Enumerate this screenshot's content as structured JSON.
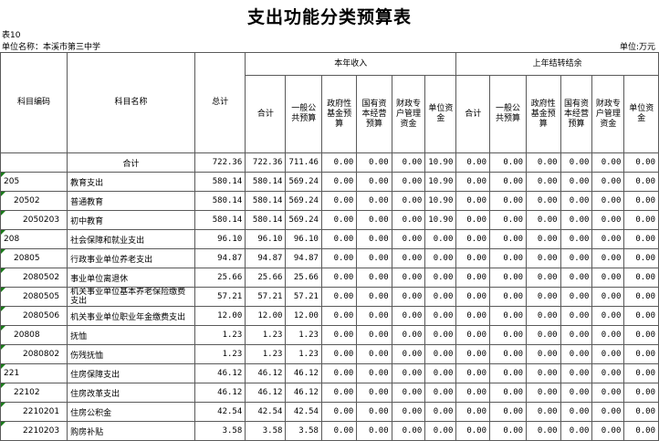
{
  "title": "支出功能分类预算表",
  "table_id": "表10",
  "unit_name": "单位名称：本溪市第三中学",
  "unit": "单位:万元",
  "headers": {
    "code": "科目编码",
    "name": "科目名称",
    "total": "总计",
    "group_current": "本年收入",
    "group_prior": "上年结转结余",
    "current_cols": [
      "合计",
      "一般公共预算",
      "政府性基金预算",
      "国有资本经营预算",
      "财政专户管理资金",
      "单位资金"
    ],
    "prior_cols": [
      "合计",
      "一般公共预算",
      "政府性基金预算",
      "国有资本经营预算",
      "财政专户管理资金",
      "单位资金"
    ]
  },
  "rows": [
    {
      "code": "",
      "name": "合计",
      "total": "722.36",
      "cur": [
        "722.36",
        "711.46",
        "0.00",
        "0.00",
        "0.00",
        "10.90"
      ],
      "prior": [
        "0.00",
        "0.00",
        "0.00",
        "0.00",
        "0.00",
        "0.00"
      ]
    },
    {
      "code": "205",
      "name": "教育支出",
      "total": "580.14",
      "cur": [
        "580.14",
        "569.24",
        "0.00",
        "0.00",
        "0.00",
        "10.90"
      ],
      "prior": [
        "0.00",
        "0.00",
        "0.00",
        "0.00",
        "0.00",
        "0.00"
      ]
    },
    {
      "code": "20502",
      "name": "普通教育",
      "total": "580.14",
      "cur": [
        "580.14",
        "569.24",
        "0.00",
        "0.00",
        "0.00",
        "10.90"
      ],
      "prior": [
        "0.00",
        "0.00",
        "0.00",
        "0.00",
        "0.00",
        "0.00"
      ]
    },
    {
      "code": "2050203",
      "name": "初中教育",
      "total": "580.14",
      "cur": [
        "580.14",
        "569.24",
        "0.00",
        "0.00",
        "0.00",
        "10.90"
      ],
      "prior": [
        "0.00",
        "0.00",
        "0.00",
        "0.00",
        "0.00",
        "0.00"
      ]
    },
    {
      "code": "208",
      "name": "社会保障和就业支出",
      "total": "96.10",
      "cur": [
        "96.10",
        "96.10",
        "0.00",
        "0.00",
        "0.00",
        "0.00"
      ],
      "prior": [
        "0.00",
        "0.00",
        "0.00",
        "0.00",
        "0.00",
        "0.00"
      ]
    },
    {
      "code": "20805",
      "name": "行政事业单位养老支出",
      "total": "94.87",
      "cur": [
        "94.87",
        "94.87",
        "0.00",
        "0.00",
        "0.00",
        "0.00"
      ],
      "prior": [
        "0.00",
        "0.00",
        "0.00",
        "0.00",
        "0.00",
        "0.00"
      ]
    },
    {
      "code": "2080502",
      "name": "事业单位离退休",
      "total": "25.66",
      "cur": [
        "25.66",
        "25.66",
        "0.00",
        "0.00",
        "0.00",
        "0.00"
      ],
      "prior": [
        "0.00",
        "0.00",
        "0.00",
        "0.00",
        "0.00",
        "0.00"
      ]
    },
    {
      "code": "2080505",
      "name": "机关事业单位基本养老保险缴费支出",
      "total": "57.21",
      "cur": [
        "57.21",
        "57.21",
        "0.00",
        "0.00",
        "0.00",
        "0.00"
      ],
      "prior": [
        "0.00",
        "0.00",
        "0.00",
        "0.00",
        "0.00",
        "0.00"
      ]
    },
    {
      "code": "2080506",
      "name": "机关事业单位职业年金缴费支出",
      "total": "12.00",
      "cur": [
        "12.00",
        "12.00",
        "0.00",
        "0.00",
        "0.00",
        "0.00"
      ],
      "prior": [
        "0.00",
        "0.00",
        "0.00",
        "0.00",
        "0.00",
        "0.00"
      ]
    },
    {
      "code": "20808",
      "name": "抚恤",
      "total": "1.23",
      "cur": [
        "1.23",
        "1.23",
        "0.00",
        "0.00",
        "0.00",
        "0.00"
      ],
      "prior": [
        "0.00",
        "0.00",
        "0.00",
        "0.00",
        "0.00",
        "0.00"
      ]
    },
    {
      "code": "2080802",
      "name": "伤残抚恤",
      "total": "1.23",
      "cur": [
        "1.23",
        "1.23",
        "0.00",
        "0.00",
        "0.00",
        "0.00"
      ],
      "prior": [
        "0.00",
        "0.00",
        "0.00",
        "0.00",
        "0.00",
        "0.00"
      ]
    },
    {
      "code": "221",
      "name": "住房保障支出",
      "total": "46.12",
      "cur": [
        "46.12",
        "46.12",
        "0.00",
        "0.00",
        "0.00",
        "0.00"
      ],
      "prior": [
        "0.00",
        "0.00",
        "0.00",
        "0.00",
        "0.00",
        "0.00"
      ]
    },
    {
      "code": "22102",
      "name": "住房改革支出",
      "total": "46.12",
      "cur": [
        "46.12",
        "46.12",
        "0.00",
        "0.00",
        "0.00",
        "0.00"
      ],
      "prior": [
        "0.00",
        "0.00",
        "0.00",
        "0.00",
        "0.00",
        "0.00"
      ]
    },
    {
      "code": "2210201",
      "name": "住房公积金",
      "total": "42.54",
      "cur": [
        "42.54",
        "42.54",
        "0.00",
        "0.00",
        "0.00",
        "0.00"
      ],
      "prior": [
        "0.00",
        "0.00",
        "0.00",
        "0.00",
        "0.00",
        "0.00"
      ]
    },
    {
      "code": "2210203",
      "name": "购房补贴",
      "total": "3.58",
      "cur": [
        "3.58",
        "3.58",
        "0.00",
        "0.00",
        "0.00",
        "0.00"
      ],
      "prior": [
        "0.00",
        "0.00",
        "0.00",
        "0.00",
        "0.00",
        "0.00"
      ]
    }
  ]
}
